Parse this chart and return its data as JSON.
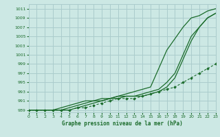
{
  "background_color": "#cce8e4",
  "grid_color": "#aacccc",
  "line_color": "#1a6b2a",
  "title": "Graphe pression niveau de la mer (hPa)",
  "xlim": [
    0,
    23
  ],
  "ylim": [
    988.5,
    1012
  ],
  "yticks": [
    989,
    991,
    993,
    995,
    997,
    999,
    1001,
    1003,
    1005,
    1007,
    1009,
    1011
  ],
  "xticks": [
    0,
    1,
    2,
    3,
    4,
    5,
    6,
    7,
    8,
    9,
    10,
    11,
    12,
    13,
    14,
    15,
    16,
    17,
    18,
    19,
    20,
    21,
    22,
    23
  ],
  "line1": [
    989,
    989,
    989,
    989,
    989,
    989,
    989.5,
    990,
    990.5,
    991,
    991.5,
    992,
    992.5,
    993,
    993.5,
    994,
    998,
    1002,
    1004.5,
    1007,
    1009,
    1009.5,
    1010.5,
    1011
  ],
  "line2": [
    989,
    989,
    989,
    989,
    989,
    989.5,
    990,
    990.5,
    991,
    991,
    991.5,
    991.5,
    992,
    992,
    992.5,
    993,
    993.5,
    995,
    997,
    1001,
    1005,
    1007,
    1009,
    1010
  ],
  "line3": [
    989,
    989,
    989,
    989,
    989.5,
    990,
    990.5,
    991,
    991,
    991.5,
    991.5,
    992,
    992,
    992,
    992,
    992.5,
    993,
    994,
    996,
    1000,
    1004,
    1007,
    1009,
    1010
  ],
  "line4_x": [
    0,
    1,
    2,
    3,
    4,
    5,
    6,
    7,
    8,
    9,
    10,
    11,
    12,
    13,
    14,
    15,
    16,
    17,
    18,
    19,
    20,
    21,
    22,
    23
  ],
  "line4": [
    989,
    989,
    989,
    989,
    989,
    989,
    989.5,
    989.5,
    990,
    990.5,
    991,
    991.5,
    991.5,
    991.5,
    992,
    992.5,
    993,
    993.5,
    994,
    995,
    996,
    997,
    998,
    999
  ]
}
